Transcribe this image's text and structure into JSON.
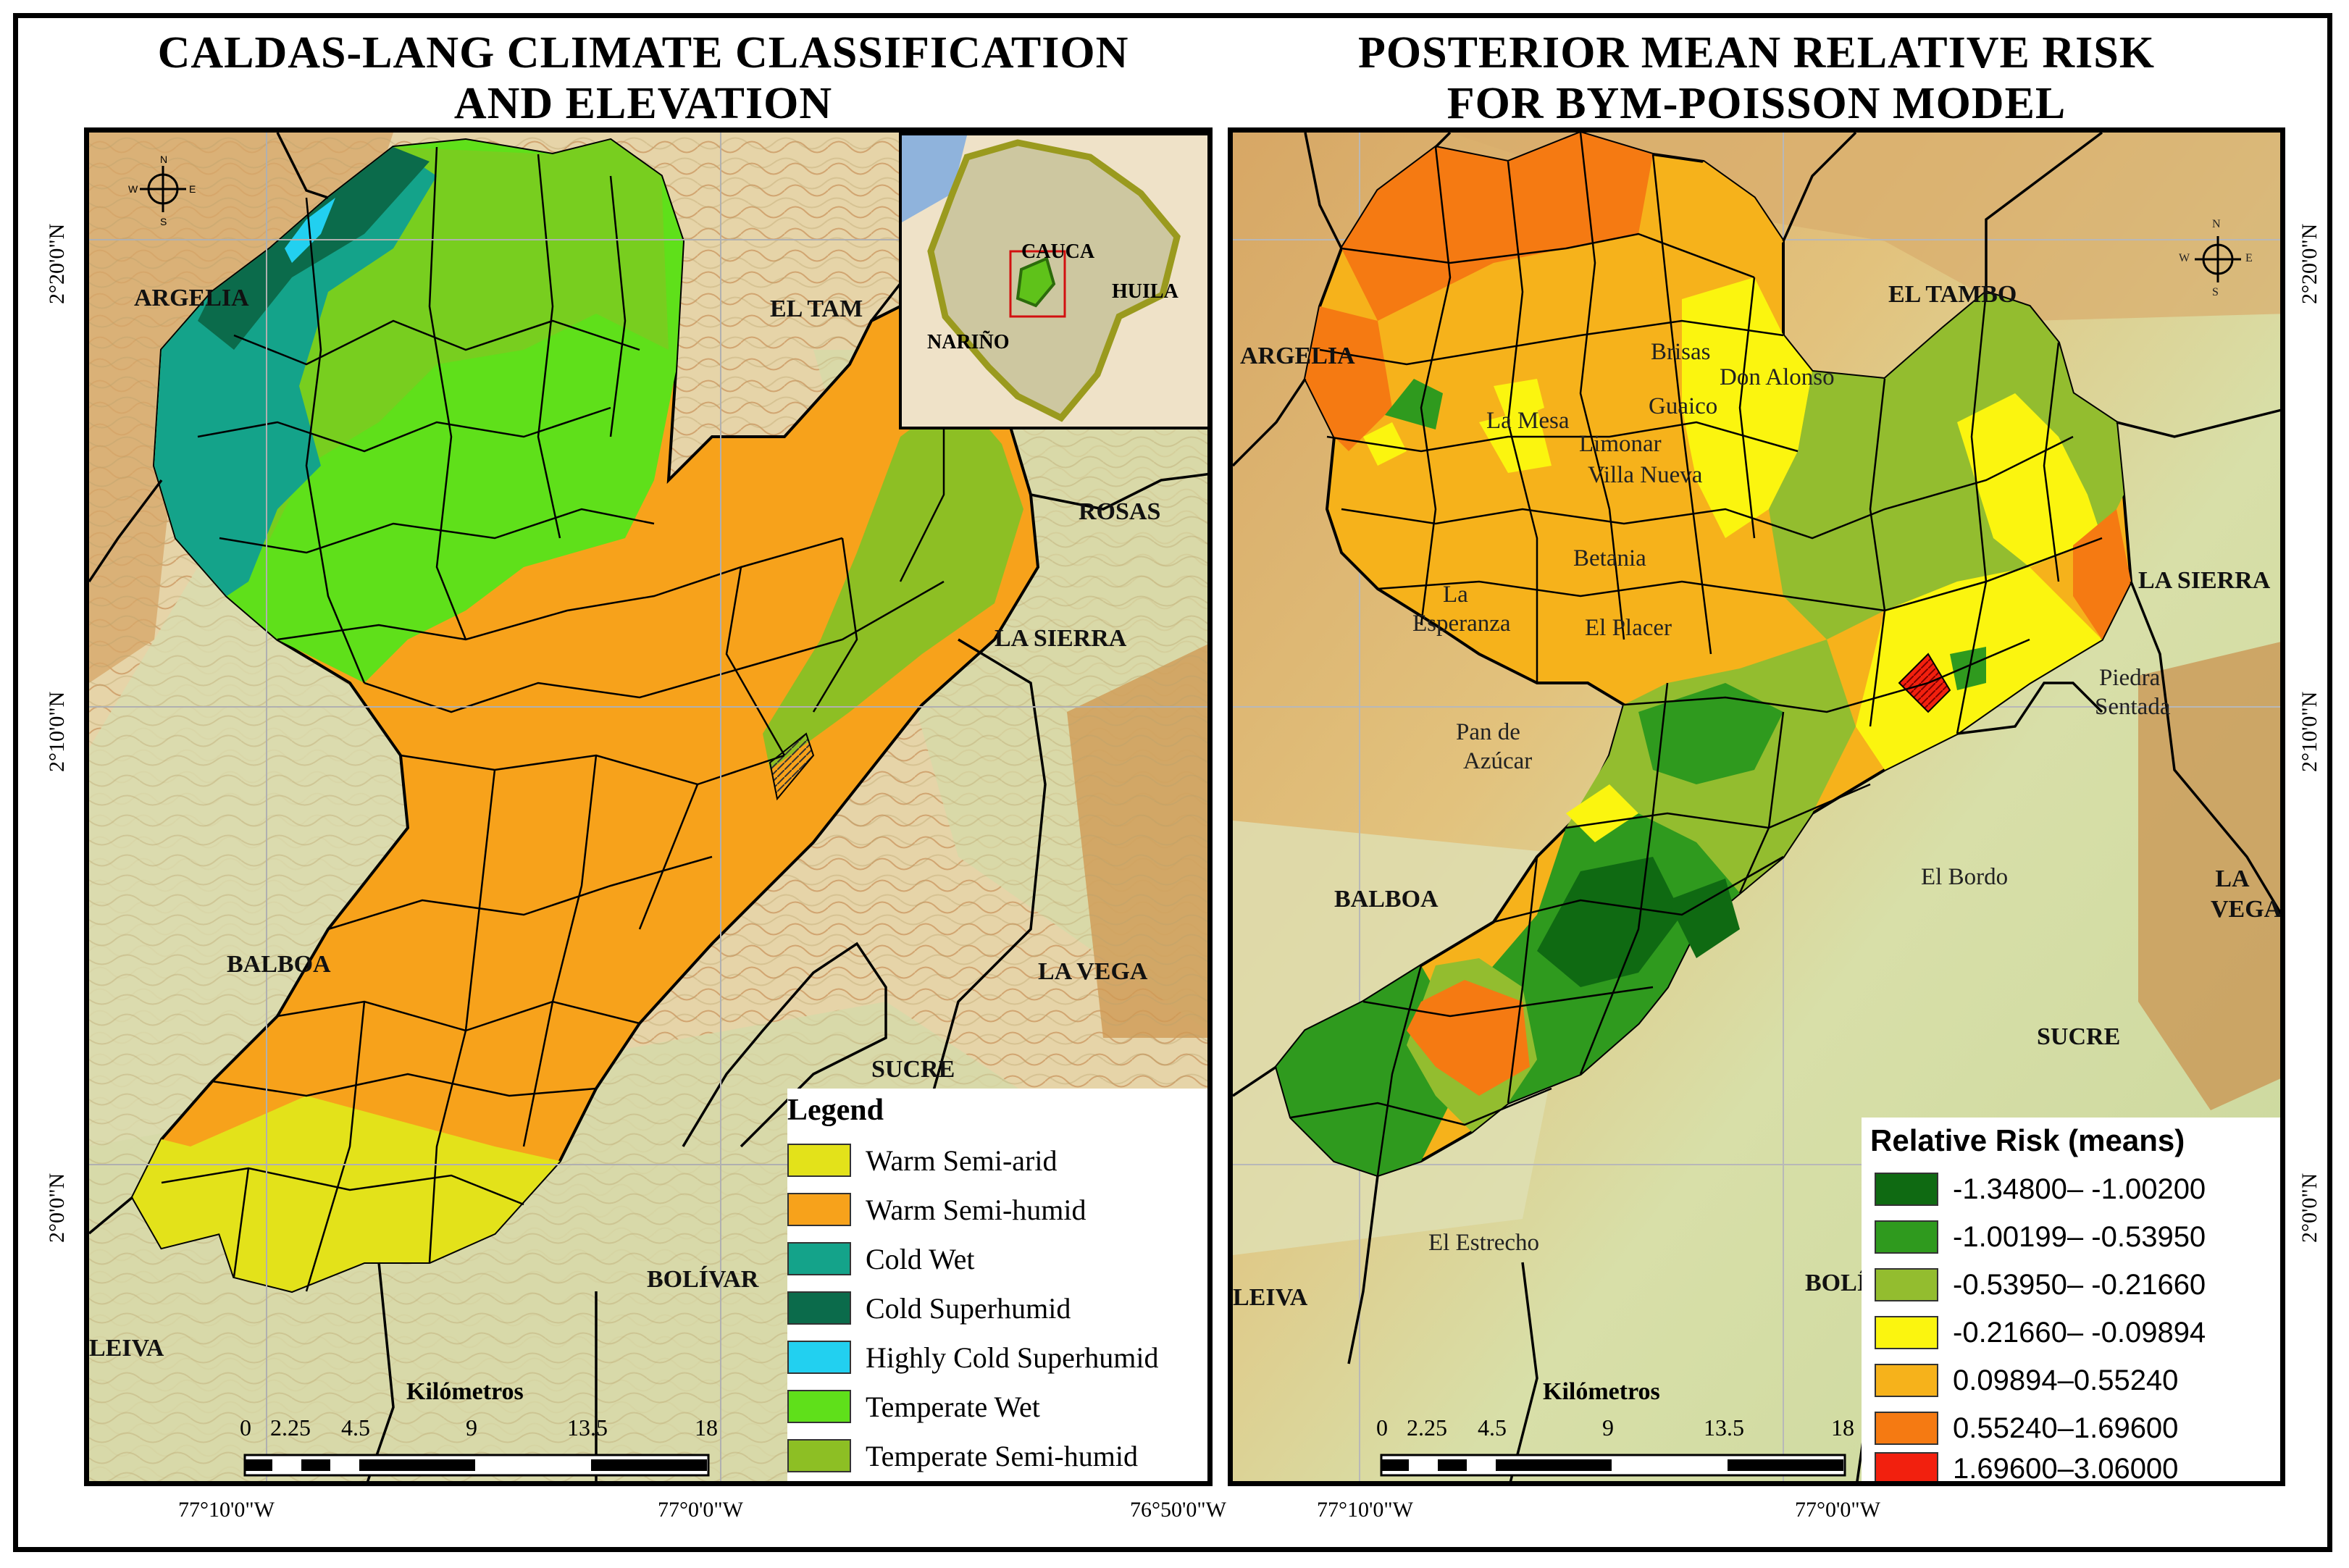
{
  "left_panel": {
    "title_line1": "CALDAS-LANG CLIMATE CLASSIFICATION",
    "title_line2": "AND ELEVATION",
    "places": [
      "ARGELIA",
      "EL TAM",
      "ROSAS",
      "LA SIERRA",
      "LA VEGA",
      "SUCRE",
      "BALBOA",
      "BOLÍVAR",
      "LEIVA"
    ],
    "inset_places": [
      "CAUCA",
      "HUILA",
      "NARIÑO"
    ],
    "lat_labels": [
      "2°20'0\"N",
      "2°10'0\"N",
      "2°0'0\"N"
    ],
    "lon_labels": [
      "77°10'0\"W",
      "77°0'0\"W",
      "76°50'0\"W"
    ],
    "scale_title": "Kilómetros",
    "scale_ticks": [
      "0",
      "2.25",
      "4.5",
      "9",
      "13.5",
      "18"
    ],
    "legend": {
      "title": "Legend",
      "items": [
        {
          "label": "Warm Semi-arid",
          "color": "#e3e21a"
        },
        {
          "label": "Warm Semi-humid",
          "color": "#f7a21b"
        },
        {
          "label": "Cold Wet",
          "color": "#14a38a"
        },
        {
          "label": "Cold Superhumid",
          "color": "#0b6b4b"
        },
        {
          "label": "Highly Cold Superhumid",
          "color": "#22d0f0"
        },
        {
          "label": "Temperate Wet",
          "color": "#5fe01a"
        },
        {
          "label": "Temperate Semi-humid",
          "color": "#8dbf24"
        }
      ]
    }
  },
  "right_panel": {
    "title_line1": "POSTERIOR MEAN RELATIVE RISK",
    "title_line2": "FOR BYM-POISSON MODEL",
    "places": [
      "EL TAMBO",
      "ARGELIA",
      "LA SIERRA",
      "BALBOA",
      "LA VEGA",
      "SUCRE",
      "BOLÍ",
      "LEIVA"
    ],
    "localities": [
      "Brisas",
      "Don Alonso",
      "Guaico",
      "La Mesa",
      "Limonar",
      "Villa Nueva",
      "Betania",
      "La",
      "Esperanza",
      "El Placer",
      "Piedra",
      "Sentada",
      "Pan de",
      "Azúcar",
      "El Bordo",
      "El Estrecho"
    ],
    "lat_labels": [
      "2°20'0\"N",
      "2°10'0\"N",
      "2°0'0\"N"
    ],
    "lon_labels": [
      "77°10'0\"W",
      "77°0'0\"W"
    ],
    "scale_title": "Kilómetros",
    "scale_ticks": [
      "0",
      "2.25",
      "4.5",
      "9",
      "13.5",
      "18"
    ],
    "legend": {
      "title": "Relative Risk (means)",
      "items": [
        {
          "label": "-1.34800– -1.00200",
          "color": "#0f6a12"
        },
        {
          "label": "-1.00199– -0.53950",
          "color": "#2f9a1e"
        },
        {
          "label": "-0.53950– -0.21660",
          "color": "#93bd2f"
        },
        {
          "label": "-0.21660– -0.09894",
          "color": "#fbf50f"
        },
        {
          "label": "0.09894–0.55240",
          "color": "#f6b21b"
        },
        {
          "label": "0.55240–1.69600",
          "color": "#f57a12"
        },
        {
          "label": "1.69600–3.06000",
          "color": "#f2200e"
        }
      ]
    }
  },
  "compass": {
    "north": "N",
    "south": "S",
    "east": "E",
    "west": "W"
  }
}
